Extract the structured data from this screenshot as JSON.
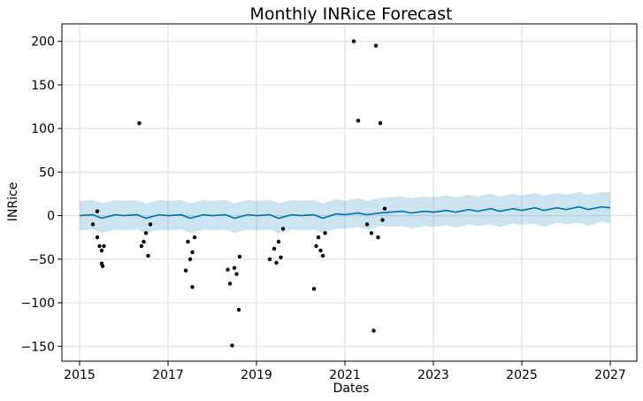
{
  "chart_data": {
    "type": "line",
    "title": "Monthly INRice Forecast",
    "xlabel": "Dates",
    "ylabel": "INRice",
    "xlim": [
      2014.6,
      2027.6
    ],
    "ylim": [
      -167,
      220
    ],
    "grid": true,
    "x_ticks": [
      2015,
      2017,
      2019,
      2021,
      2023,
      2025,
      2027
    ],
    "x_tick_labels": [
      "2015",
      "2017",
      "2019",
      "2021",
      "2023",
      "2025",
      "2027"
    ],
    "y_ticks": [
      -150,
      -100,
      -50,
      0,
      50,
      100,
      150,
      200
    ],
    "y_tick_labels": [
      "−150",
      "−100",
      "−50",
      "0",
      "50",
      "100",
      "150",
      "200"
    ],
    "forecast": {
      "x": [
        2015.0,
        2015.3,
        2015.5,
        2015.8,
        2016.0,
        2016.3,
        2016.5,
        2016.8,
        2017.0,
        2017.3,
        2017.5,
        2017.8,
        2018.0,
        2018.3,
        2018.5,
        2018.8,
        2019.0,
        2019.3,
        2019.5,
        2019.8,
        2020.0,
        2020.3,
        2020.5,
        2020.8,
        2021.0,
        2021.3,
        2021.5,
        2021.8,
        2022.0,
        2022.3,
        2022.5,
        2022.8,
        2023.0,
        2023.3,
        2023.5,
        2023.8,
        2024.0,
        2024.3,
        2024.5,
        2024.8,
        2025.0,
        2025.3,
        2025.5,
        2025.8,
        2026.0,
        2026.3,
        2026.5,
        2026.8,
        2027.0
      ],
      "yhat": [
        0,
        1,
        -3,
        1,
        0,
        1,
        -3,
        1,
        0,
        1,
        -3,
        1,
        0,
        1,
        -3,
        1,
        0,
        1,
        -3,
        1,
        0,
        1,
        -3,
        2,
        1,
        3,
        1,
        3,
        4,
        5,
        3,
        5,
        4,
        6,
        4,
        7,
        5,
        8,
        5,
        8,
        6,
        9,
        6,
        9,
        7,
        10,
        7,
        10,
        9
      ],
      "lower": [
        -17,
        -16,
        -20,
        -16,
        -17,
        -16,
        -20,
        -16,
        -17,
        -16,
        -20,
        -16,
        -17,
        -16,
        -20,
        -16,
        -17,
        -16,
        -20,
        -16,
        -17,
        -16,
        -20,
        -15,
        -15,
        -13,
        -16,
        -12,
        -13,
        -12,
        -15,
        -12,
        -13,
        -11,
        -14,
        -10,
        -12,
        -10,
        -13,
        -9,
        -11,
        -9,
        -13,
        -8,
        -10,
        -8,
        -12,
        -7,
        -9
      ],
      "upper": [
        17,
        18,
        14,
        18,
        17,
        18,
        14,
        18,
        17,
        18,
        14,
        18,
        17,
        18,
        14,
        18,
        17,
        18,
        14,
        18,
        17,
        18,
        14,
        19,
        17,
        20,
        17,
        20,
        21,
        22,
        20,
        22,
        21,
        23,
        21,
        24,
        22,
        25,
        22,
        25,
        23,
        26,
        23,
        26,
        24,
        27,
        24,
        27,
        27
      ]
    },
    "actuals": {
      "x": [
        2015.3,
        2015.4,
        2015.45,
        2015.5,
        2015.5,
        2015.52,
        2015.55,
        2015.4,
        2016.35,
        2016.4,
        2016.45,
        2016.5,
        2016.55,
        2016.6,
        2017.4,
        2017.45,
        2017.5,
        2017.55,
        2017.55,
        2017.6,
        2018.35,
        2018.4,
        2018.45,
        2018.5,
        2018.55,
        2018.6,
        2018.62,
        2019.3,
        2019.4,
        2019.45,
        2019.5,
        2019.55,
        2019.6,
        2020.3,
        2020.35,
        2020.4,
        2020.45,
        2020.5,
        2020.55,
        2021.2,
        2021.3,
        2021.5,
        2021.6,
        2021.65,
        2021.7,
        2021.75,
        2021.8,
        2021.85,
        2021.9
      ],
      "y": [
        -10,
        -25,
        -35,
        -40,
        -55,
        -58,
        -35,
        5,
        106,
        -35,
        -30,
        -20,
        -46,
        -10,
        -63,
        -30,
        -50,
        -82,
        -42,
        -25,
        -62,
        -78,
        -149,
        -60,
        -67,
        -108,
        -47,
        -50,
        -38,
        -54,
        -30,
        -48,
        -15,
        -84,
        -35,
        -25,
        -40,
        -46,
        -20,
        200,
        109,
        -10,
        -20,
        -132,
        195,
        -25,
        106,
        -5,
        8
      ]
    }
  }
}
